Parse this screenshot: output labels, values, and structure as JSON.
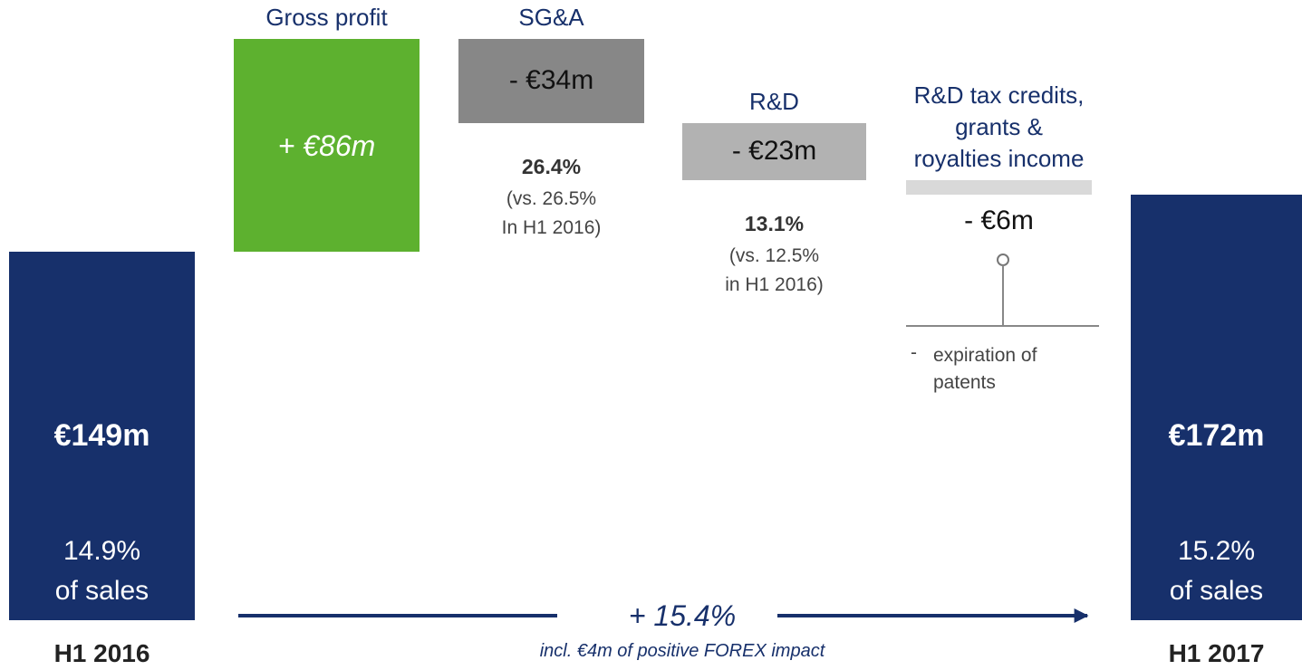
{
  "chart_data": {
    "type": "waterfall",
    "categories": [
      "H1 2016",
      "Gross profit",
      "SG&A",
      "R&D",
      "R&D tax credits, grants & royalties income",
      "H1 2017"
    ],
    "values": [
      149,
      86,
      -34,
      -23,
      -6,
      172
    ],
    "value_labels": [
      "€149m",
      "+ €86m",
      "- €34m",
      "- €23m",
      "- €6m",
      "€172m"
    ],
    "kinds": [
      "total",
      "delta",
      "delta",
      "delta",
      "delta",
      "total"
    ],
    "colors": [
      "#17306b",
      "#5db12f",
      "#878787",
      "#b2b2b2",
      "#d9d9d9",
      "#17306b"
    ],
    "notes": [
      [
        "14.9%",
        "of sales"
      ],
      null,
      [
        "26.4%",
        "(vs. 26.5%",
        "In H1 2016)"
      ],
      [
        "13.1%",
        "(vs. 12.5%",
        "in H1 2016)"
      ],
      null,
      [
        "15.2%",
        "of sales"
      ]
    ],
    "callout": {
      "bullet": "-",
      "text": "expiration of patents"
    },
    "growth": {
      "label": "+ 15.4%",
      "note": "incl. €4m of positive FOREX impact"
    }
  }
}
